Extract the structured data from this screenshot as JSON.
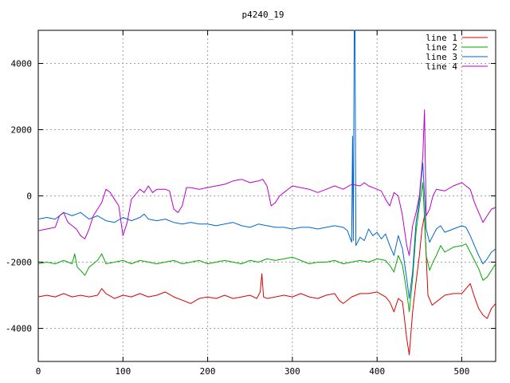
{
  "chart_data": {
    "type": "line",
    "title": "p4240_19",
    "xlim": [
      0,
      540
    ],
    "ylim": [
      -5000,
      5000
    ],
    "x_ticks": [
      0,
      100,
      200,
      300,
      400,
      500
    ],
    "y_ticks": [
      -4000,
      -2000,
      0,
      2000,
      4000
    ],
    "x_tick_labels": [
      "0",
      "100",
      "200",
      "300",
      "400",
      "500"
    ],
    "y_tick_labels": [
      "-4000",
      "-2000",
      "0",
      "2000",
      "4000"
    ],
    "grid": true,
    "legend_position": "top-right",
    "series": [
      {
        "name": "line 1",
        "color": "#dd0000",
        "points": [
          [
            0,
            -3050
          ],
          [
            10,
            -3000
          ],
          [
            20,
            -3050
          ],
          [
            30,
            -2950
          ],
          [
            40,
            -3050
          ],
          [
            50,
            -3000
          ],
          [
            60,
            -3050
          ],
          [
            70,
            -3000
          ],
          [
            75,
            -2800
          ],
          [
            80,
            -2950
          ],
          [
            90,
            -3100
          ],
          [
            100,
            -3000
          ],
          [
            110,
            -3050
          ],
          [
            120,
            -2950
          ],
          [
            130,
            -3050
          ],
          [
            140,
            -3000
          ],
          [
            150,
            -2900
          ],
          [
            160,
            -3050
          ],
          [
            170,
            -3150
          ],
          [
            180,
            -3250
          ],
          [
            190,
            -3100
          ],
          [
            200,
            -3050
          ],
          [
            210,
            -3100
          ],
          [
            220,
            -3000
          ],
          [
            230,
            -3100
          ],
          [
            240,
            -3050
          ],
          [
            250,
            -3000
          ],
          [
            258,
            -3100
          ],
          [
            262,
            -2900
          ],
          [
            264,
            -2350
          ],
          [
            266,
            -3050
          ],
          [
            270,
            -3100
          ],
          [
            280,
            -3050
          ],
          [
            290,
            -3000
          ],
          [
            300,
            -3050
          ],
          [
            310,
            -2950
          ],
          [
            320,
            -3050
          ],
          [
            330,
            -3100
          ],
          [
            340,
            -3000
          ],
          [
            350,
            -2950
          ],
          [
            355,
            -3150
          ],
          [
            360,
            -3250
          ],
          [
            370,
            -3050
          ],
          [
            380,
            -2950
          ],
          [
            390,
            -2950
          ],
          [
            400,
            -2900
          ],
          [
            410,
            -3050
          ],
          [
            415,
            -3200
          ],
          [
            420,
            -3500
          ],
          [
            425,
            -3100
          ],
          [
            430,
            -3200
          ],
          [
            435,
            -4300
          ],
          [
            438,
            -4800
          ],
          [
            442,
            -3500
          ],
          [
            446,
            -2600
          ],
          [
            450,
            -1800
          ],
          [
            453,
            -1000
          ],
          [
            456,
            -600
          ],
          [
            460,
            -3000
          ],
          [
            465,
            -3300
          ],
          [
            470,
            -3200
          ],
          [
            475,
            -3100
          ],
          [
            480,
            -3000
          ],
          [
            490,
            -2950
          ],
          [
            500,
            -2950
          ],
          [
            505,
            -2800
          ],
          [
            510,
            -2650
          ],
          [
            515,
            -3050
          ],
          [
            520,
            -3400
          ],
          [
            525,
            -3600
          ],
          [
            530,
            -3700
          ],
          [
            535,
            -3400
          ],
          [
            540,
            -3250
          ]
        ]
      },
      {
        "name": "line 2",
        "color": "#00aa00",
        "points": [
          [
            0,
            -2050
          ],
          [
            10,
            -2000
          ],
          [
            20,
            -2050
          ],
          [
            30,
            -1950
          ],
          [
            40,
            -2050
          ],
          [
            43,
            -1750
          ],
          [
            46,
            -2150
          ],
          [
            50,
            -2250
          ],
          [
            55,
            -2400
          ],
          [
            60,
            -2150
          ],
          [
            70,
            -1950
          ],
          [
            75,
            -1750
          ],
          [
            80,
            -2050
          ],
          [
            90,
            -2000
          ],
          [
            100,
            -1950
          ],
          [
            110,
            -2050
          ],
          [
            120,
            -1950
          ],
          [
            130,
            -2000
          ],
          [
            140,
            -2050
          ],
          [
            150,
            -2000
          ],
          [
            160,
            -1950
          ],
          [
            170,
            -2050
          ],
          [
            180,
            -2000
          ],
          [
            190,
            -1950
          ],
          [
            200,
            -2050
          ],
          [
            210,
            -2000
          ],
          [
            220,
            -1950
          ],
          [
            230,
            -2000
          ],
          [
            240,
            -2050
          ],
          [
            250,
            -1950
          ],
          [
            260,
            -2000
          ],
          [
            270,
            -1900
          ],
          [
            280,
            -1950
          ],
          [
            290,
            -1900
          ],
          [
            300,
            -1850
          ],
          [
            310,
            -1950
          ],
          [
            320,
            -2050
          ],
          [
            330,
            -2000
          ],
          [
            340,
            -2000
          ],
          [
            350,
            -1950
          ],
          [
            360,
            -2050
          ],
          [
            370,
            -2000
          ],
          [
            380,
            -1950
          ],
          [
            390,
            -2000
          ],
          [
            400,
            -1900
          ],
          [
            410,
            -1950
          ],
          [
            415,
            -2100
          ],
          [
            420,
            -2300
          ],
          [
            425,
            -1800
          ],
          [
            430,
            -2100
          ],
          [
            435,
            -2900
          ],
          [
            438,
            -3500
          ],
          [
            442,
            -2500
          ],
          [
            446,
            -1100
          ],
          [
            450,
            -300
          ],
          [
            454,
            400
          ],
          [
            458,
            -1800
          ],
          [
            462,
            -2250
          ],
          [
            466,
            -2000
          ],
          [
            470,
            -1800
          ],
          [
            475,
            -1500
          ],
          [
            480,
            -1700
          ],
          [
            490,
            -1550
          ],
          [
            500,
            -1500
          ],
          [
            505,
            -1450
          ],
          [
            510,
            -1700
          ],
          [
            515,
            -1950
          ],
          [
            520,
            -2200
          ],
          [
            525,
            -2550
          ],
          [
            530,
            -2450
          ],
          [
            535,
            -2250
          ],
          [
            540,
            -2050
          ]
        ]
      },
      {
        "name": "line 3",
        "color": "#0066cc",
        "points": [
          [
            0,
            -700
          ],
          [
            10,
            -650
          ],
          [
            20,
            -700
          ],
          [
            30,
            -500
          ],
          [
            40,
            -600
          ],
          [
            50,
            -500
          ],
          [
            60,
            -700
          ],
          [
            70,
            -600
          ],
          [
            80,
            -750
          ],
          [
            90,
            -800
          ],
          [
            100,
            -650
          ],
          [
            110,
            -750
          ],
          [
            120,
            -650
          ],
          [
            125,
            -550
          ],
          [
            130,
            -700
          ],
          [
            140,
            -750
          ],
          [
            150,
            -700
          ],
          [
            160,
            -800
          ],
          [
            170,
            -850
          ],
          [
            180,
            -800
          ],
          [
            190,
            -850
          ],
          [
            200,
            -850
          ],
          [
            210,
            -900
          ],
          [
            220,
            -850
          ],
          [
            230,
            -800
          ],
          [
            240,
            -900
          ],
          [
            250,
            -950
          ],
          [
            260,
            -850
          ],
          [
            270,
            -900
          ],
          [
            280,
            -950
          ],
          [
            290,
            -950
          ],
          [
            300,
            -1000
          ],
          [
            310,
            -950
          ],
          [
            320,
            -950
          ],
          [
            330,
            -1000
          ],
          [
            340,
            -950
          ],
          [
            350,
            -900
          ],
          [
            360,
            -950
          ],
          [
            365,
            -1050
          ],
          [
            370,
            -1400
          ],
          [
            371,
            1800
          ],
          [
            372,
            -1350
          ],
          [
            373,
            5000
          ],
          [
            374,
            5000
          ],
          [
            375,
            -1500
          ],
          [
            380,
            -1250
          ],
          [
            385,
            -1350
          ],
          [
            390,
            -1000
          ],
          [
            395,
            -1200
          ],
          [
            400,
            -1100
          ],
          [
            405,
            -1300
          ],
          [
            410,
            -1150
          ],
          [
            415,
            -1500
          ],
          [
            420,
            -1800
          ],
          [
            425,
            -1200
          ],
          [
            430,
            -1600
          ],
          [
            435,
            -2500
          ],
          [
            438,
            -3100
          ],
          [
            442,
            -2300
          ],
          [
            446,
            -800
          ],
          [
            450,
            -100
          ],
          [
            454,
            1000
          ],
          [
            458,
            -1000
          ],
          [
            462,
            -1400
          ],
          [
            466,
            -1200
          ],
          [
            470,
            -1000
          ],
          [
            475,
            -900
          ],
          [
            480,
            -1100
          ],
          [
            490,
            -1000
          ],
          [
            500,
            -900
          ],
          [
            505,
            -950
          ],
          [
            510,
            -1200
          ],
          [
            515,
            -1500
          ],
          [
            520,
            -1800
          ],
          [
            525,
            -2050
          ],
          [
            530,
            -1900
          ],
          [
            535,
            -1700
          ],
          [
            540,
            -1600
          ]
        ]
      },
      {
        "name": "line 4",
        "color": "#bb00cc",
        "points": [
          [
            0,
            -1050
          ],
          [
            10,
            -1000
          ],
          [
            20,
            -950
          ],
          [
            25,
            -600
          ],
          [
            30,
            -500
          ],
          [
            35,
            -800
          ],
          [
            40,
            -900
          ],
          [
            45,
            -1000
          ],
          [
            50,
            -1200
          ],
          [
            55,
            -1300
          ],
          [
            60,
            -1000
          ],
          [
            65,
            -600
          ],
          [
            70,
            -400
          ],
          [
            75,
            -200
          ],
          [
            80,
            200
          ],
          [
            85,
            100
          ],
          [
            90,
            -100
          ],
          [
            95,
            -300
          ],
          [
            100,
            -1200
          ],
          [
            105,
            -800
          ],
          [
            110,
            -100
          ],
          [
            115,
            50
          ],
          [
            120,
            200
          ],
          [
            125,
            100
          ],
          [
            130,
            300
          ],
          [
            135,
            100
          ],
          [
            140,
            200
          ],
          [
            150,
            200
          ],
          [
            155,
            150
          ],
          [
            160,
            -400
          ],
          [
            165,
            -500
          ],
          [
            170,
            -300
          ],
          [
            175,
            250
          ],
          [
            180,
            250
          ],
          [
            190,
            200
          ],
          [
            200,
            250
          ],
          [
            210,
            300
          ],
          [
            220,
            350
          ],
          [
            230,
            450
          ],
          [
            240,
            500
          ],
          [
            250,
            400
          ],
          [
            260,
            450
          ],
          [
            265,
            500
          ],
          [
            270,
            300
          ],
          [
            275,
            -300
          ],
          [
            280,
            -200
          ],
          [
            285,
            0
          ],
          [
            290,
            100
          ],
          [
            300,
            300
          ],
          [
            310,
            250
          ],
          [
            320,
            200
          ],
          [
            330,
            100
          ],
          [
            340,
            200
          ],
          [
            350,
            300
          ],
          [
            360,
            200
          ],
          [
            370,
            350
          ],
          [
            380,
            300
          ],
          [
            385,
            400
          ],
          [
            390,
            300
          ],
          [
            400,
            200
          ],
          [
            405,
            150
          ],
          [
            410,
            -100
          ],
          [
            415,
            -300
          ],
          [
            420,
            100
          ],
          [
            425,
            0
          ],
          [
            430,
            -600
          ],
          [
            435,
            -1500
          ],
          [
            438,
            -1800
          ],
          [
            442,
            -900
          ],
          [
            446,
            -500
          ],
          [
            450,
            0
          ],
          [
            454,
            1200
          ],
          [
            456,
            2600
          ],
          [
            458,
            -600
          ],
          [
            462,
            -400
          ],
          [
            466,
            0
          ],
          [
            470,
            200
          ],
          [
            480,
            150
          ],
          [
            490,
            300
          ],
          [
            500,
            400
          ],
          [
            505,
            300
          ],
          [
            510,
            200
          ],
          [
            515,
            -200
          ],
          [
            520,
            -500
          ],
          [
            525,
            -800
          ],
          [
            530,
            -600
          ],
          [
            535,
            -400
          ],
          [
            540,
            -350
          ]
        ]
      }
    ]
  }
}
